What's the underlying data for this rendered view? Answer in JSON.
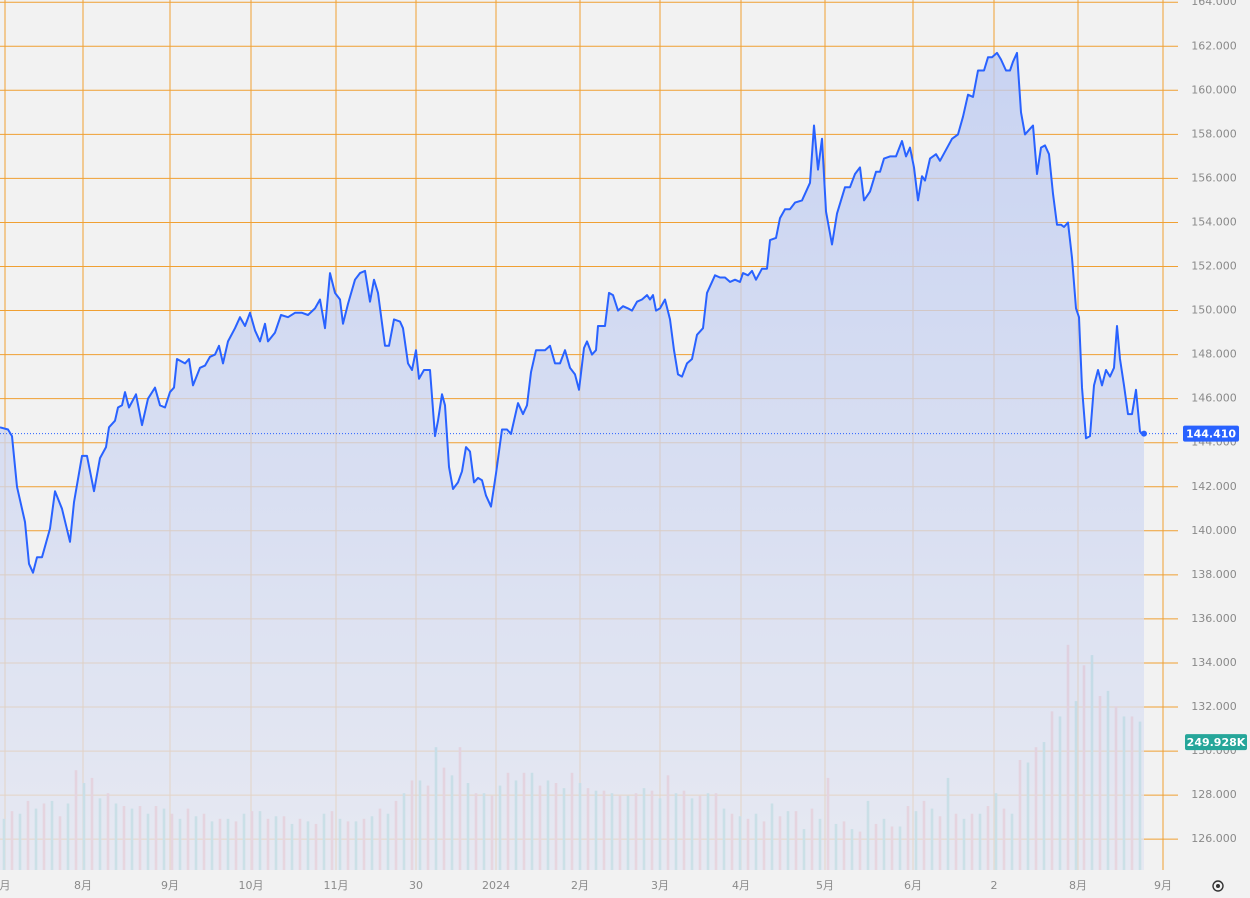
{
  "chart_data": {
    "type": "line",
    "xlim": [
      0,
      1178
    ],
    "ylim": [
      124.6,
      164.1
    ],
    "y2lim": [
      0,
      1700
    ],
    "grid": true,
    "grid_color": "#f0a033",
    "xticks": [
      {
        "value": 5,
        "label": "月"
      },
      {
        "value": 83,
        "label": "8月"
      },
      {
        "value": 170,
        "label": "9月"
      },
      {
        "value": 251,
        "label": "10月"
      },
      {
        "value": 336,
        "label": "11月"
      },
      {
        "value": 416,
        "label": "30"
      },
      {
        "value": 496,
        "label": "2024"
      },
      {
        "value": 580,
        "label": "2月"
      },
      {
        "value": 660,
        "label": "3月"
      },
      {
        "value": 741,
        "label": "4月"
      },
      {
        "value": 825,
        "label": "5月"
      },
      {
        "value": 913,
        "label": "6月"
      },
      {
        "value": 994,
        "label": "2"
      },
      {
        "value": 1078,
        "label": "8月"
      },
      {
        "value": 1163,
        "label": "9月"
      }
    ],
    "yticks": [
      {
        "value": 126,
        "label": "126.000"
      },
      {
        "value": 128,
        "label": "128.000"
      },
      {
        "value": 130,
        "label": "130.000"
      },
      {
        "value": 132,
        "label": "132.000"
      },
      {
        "value": 134,
        "label": "134.000"
      },
      {
        "value": 136,
        "label": "136.000"
      },
      {
        "value": 138,
        "label": "138.000"
      },
      {
        "value": 140,
        "label": "140.000"
      },
      {
        "value": 142,
        "label": "142.000"
      },
      {
        "value": 144,
        "label": "144.000"
      },
      {
        "value": 146,
        "label": "146.000"
      },
      {
        "value": 148,
        "label": "148.000"
      },
      {
        "value": 150,
        "label": "150.000"
      },
      {
        "value": 152,
        "label": "152.000"
      },
      {
        "value": 154,
        "label": "154.000"
      },
      {
        "value": 156,
        "label": "156.000"
      },
      {
        "value": 158,
        "label": "158.000"
      },
      {
        "value": 160,
        "label": "160.000"
      },
      {
        "value": 162,
        "label": "162.000"
      },
      {
        "value": 164,
        "label": "164.000"
      }
    ],
    "series": [
      {
        "color": "#2962ff",
        "x": [
          0,
          8,
          12,
          17,
          25,
          29,
          33,
          37,
          42,
          50,
          55,
          62,
          70,
          74,
          82,
          87,
          94,
          100,
          106,
          109,
          115,
          118,
          122,
          125,
          129,
          136,
          142,
          148,
          155,
          160,
          165,
          170,
          174,
          177,
          185,
          189,
          193,
          200,
          205,
          210,
          215,
          219,
          223,
          228,
          235,
          240,
          245,
          250,
          255,
          260,
          265,
          268,
          275,
          281,
          288,
          295,
          302,
          308,
          315,
          320,
          325,
          330,
          335,
          340,
          343,
          348,
          355,
          360,
          365,
          370,
          374,
          378,
          385,
          389,
          394,
          400,
          403,
          408,
          412,
          416,
          419,
          424,
          430,
          435,
          438,
          442,
          445,
          449,
          453,
          458,
          462,
          466,
          470,
          474,
          478,
          482,
          486,
          491,
          496,
          502,
          507,
          511,
          518,
          523,
          527,
          531,
          536,
          545,
          550,
          555,
          560,
          565,
          570,
          575,
          579,
          584,
          587,
          592,
          596,
          598,
          605,
          609,
          613,
          618,
          623,
          628,
          632,
          637,
          642,
          647,
          650,
          653,
          656,
          660,
          665,
          670,
          674,
          678,
          682,
          687,
          692,
          697,
          703,
          707,
          712,
          715,
          720,
          725,
          730,
          735,
          740,
          743,
          748,
          752,
          756,
          762,
          767,
          770,
          776,
          780,
          785,
          790,
          795,
          802,
          807,
          810,
          814,
          818,
          822,
          826,
          832,
          837,
          845,
          850,
          855,
          860,
          864,
          870,
          876,
          880,
          884,
          890,
          896,
          902,
          906,
          910,
          914,
          918,
          922,
          925,
          930,
          936,
          940,
          946,
          952,
          958,
          963,
          968,
          973,
          978,
          984,
          988,
          992,
          997,
          1001,
          1006,
          1010,
          1013,
          1017,
          1021,
          1025,
          1029,
          1033,
          1037,
          1041,
          1045,
          1049,
          1053,
          1057,
          1061,
          1064,
          1068,
          1072,
          1076,
          1079,
          1082,
          1086,
          1090,
          1094,
          1098,
          1102,
          1106,
          1110,
          1114,
          1117,
          1120,
          1124,
          1128,
          1132,
          1136,
          1140,
          1144
        ],
        "values": [
          144.7,
          144.6,
          144.3,
          142.0,
          140.4,
          138.5,
          138.1,
          138.8,
          138.8,
          140.1,
          141.8,
          141.0,
          139.5,
          141.3,
          143.4,
          143.4,
          141.8,
          143.3,
          143.8,
          144.7,
          145.0,
          145.6,
          145.7,
          146.3,
          145.6,
          146.2,
          144.8,
          146.0,
          146.5,
          145.7,
          145.6,
          146.3,
          146.5,
          147.8,
          147.6,
          147.8,
          146.6,
          147.4,
          147.5,
          147.9,
          148.0,
          148.4,
          147.6,
          148.6,
          149.2,
          149.7,
          149.3,
          149.9,
          149.1,
          148.6,
          149.4,
          148.6,
          149.0,
          149.8,
          149.7,
          149.9,
          149.9,
          149.8,
          150.1,
          150.5,
          149.2,
          151.7,
          150.8,
          150.5,
          149.4,
          150.3,
          151.4,
          151.7,
          151.8,
          150.4,
          151.4,
          150.8,
          148.4,
          148.4,
          149.6,
          149.5,
          149.2,
          147.6,
          147.3,
          148.2,
          146.9,
          147.3,
          147.3,
          144.3,
          145.0,
          146.2,
          145.7,
          142.9,
          141.9,
          142.2,
          142.7,
          143.8,
          143.6,
          142.2,
          142.4,
          142.3,
          141.6,
          141.1,
          142.6,
          144.6,
          144.6,
          144.4,
          145.8,
          145.3,
          145.7,
          147.2,
          148.2,
          148.2,
          148.4,
          147.6,
          147.6,
          148.2,
          147.4,
          147.1,
          146.4,
          148.3,
          148.6,
          148.0,
          148.2,
          149.3,
          149.3,
          150.8,
          150.7,
          150.0,
          150.2,
          150.1,
          150.0,
          150.4,
          150.5,
          150.7,
          150.5,
          150.7,
          150.0,
          150.1,
          150.5,
          149.6,
          148.2,
          147.1,
          147.0,
          147.6,
          147.8,
          148.9,
          149.2,
          150.8,
          151.3,
          151.6,
          151.5,
          151.5,
          151.3,
          151.4,
          151.3,
          151.7,
          151.6,
          151.8,
          151.4,
          151.9,
          151.9,
          153.2,
          153.3,
          154.2,
          154.6,
          154.6,
          154.9,
          155.0,
          155.5,
          155.8,
          158.4,
          156.4,
          157.8,
          154.5,
          153.0,
          154.4,
          155.6,
          155.6,
          156.2,
          156.5,
          155.0,
          155.4,
          156.3,
          156.3,
          156.9,
          157.0,
          157.0,
          157.7,
          157.0,
          157.4,
          156.5,
          155.0,
          156.1,
          155.9,
          156.9,
          157.1,
          156.8,
          157.3,
          157.8,
          158.0,
          158.8,
          159.8,
          159.7,
          160.9,
          160.9,
          161.5,
          161.5,
          161.7,
          161.4,
          160.9,
          160.9,
          161.3,
          161.7,
          159.0,
          158.0,
          158.2,
          158.4,
          156.2,
          157.4,
          157.5,
          157.1,
          155.3,
          153.9,
          153.9,
          153.8,
          154.0,
          152.4,
          150.1,
          149.7,
          146.5,
          144.2,
          144.3,
          146.6,
          147.3,
          146.6,
          147.3,
          147.0,
          147.4,
          149.3,
          147.8,
          146.6,
          145.3,
          145.3,
          146.4,
          144.5,
          144.41
        ]
      }
    ],
    "last_price": {
      "value": 144.41,
      "label": "144.410",
      "color": "#2962ff"
    },
    "volume_series": [
      {
        "axis": "y2",
        "color": "#7fcfc2",
        "x": [
          4,
          20,
          36,
          52,
          68,
          84,
          100,
          116,
          132,
          148,
          164,
          180,
          196,
          212,
          228,
          244,
          260,
          276,
          292,
          308,
          324,
          340,
          356,
          372,
          388,
          404,
          420,
          436,
          452,
          468,
          484,
          500,
          516,
          532,
          548,
          564,
          580,
          596,
          612,
          628,
          644,
          660,
          676,
          692,
          708,
          724,
          740,
          756,
          772,
          788,
          804,
          820,
          836,
          852,
          868,
          884,
          900,
          916,
          932,
          948,
          964,
          980,
          996,
          1012,
          1028,
          1044,
          1060,
          1076,
          1092,
          1108,
          1124,
          1140
        ],
        "values": [
          100,
          110,
          120,
          135,
          130,
          170,
          140,
          130,
          120,
          110,
          120,
          100,
          105,
          95,
          100,
          110,
          115,
          105,
          90,
          95,
          110,
          100,
          95,
          105,
          110,
          150,
          175,
          240,
          185,
          170,
          150,
          165,
          175,
          190,
          175,
          160,
          170,
          155,
          150,
          145,
          160,
          140,
          150,
          140,
          150,
          120,
          105,
          110,
          130,
          115,
          80,
          100,
          90,
          80,
          135,
          100,
          85,
          115,
          120,
          180,
          100,
          110,
          150,
          110,
          210,
          250,
          300,
          330,
          420,
          350,
          300,
          290
        ]
      },
      {
        "axis": "y2",
        "color": "#f4a0a0",
        "x": [
          12,
          28,
          44,
          60,
          76,
          92,
          108,
          124,
          140,
          156,
          172,
          188,
          204,
          220,
          236,
          252,
          268,
          284,
          300,
          316,
          332,
          348,
          364,
          380,
          396,
          412,
          428,
          444,
          460,
          476,
          492,
          508,
          524,
          540,
          556,
          572,
          588,
          604,
          620,
          636,
          652,
          668,
          684,
          700,
          716,
          732,
          748,
          764,
          780,
          796,
          812,
          828,
          844,
          860,
          876,
          892,
          908,
          924,
          940,
          956,
          972,
          988,
          1004,
          1020,
          1036,
          1052,
          1068,
          1084,
          1100,
          1116,
          1132
        ],
        "values": [
          115,
          135,
          130,
          105,
          195,
          180,
          150,
          125,
          125,
          125,
          110,
          120,
          110,
          100,
          95,
          115,
          100,
          105,
          100,
          90,
          115,
          95,
          100,
          120,
          135,
          175,
          165,
          200,
          240,
          150,
          145,
          190,
          190,
          165,
          170,
          190,
          160,
          155,
          145,
          150,
          155,
          185,
          155,
          145,
          150,
          110,
          100,
          95,
          105,
          115,
          120,
          180,
          95,
          75,
          90,
          85,
          125,
          135,
          105,
          110,
          110,
          125,
          120,
          215,
          240,
          310,
          440,
          400,
          340,
          320,
          300
        ]
      }
    ],
    "last_volume": {
      "value": 249.928,
      "label": "249.928K",
      "color": "#26a69a"
    }
  }
}
